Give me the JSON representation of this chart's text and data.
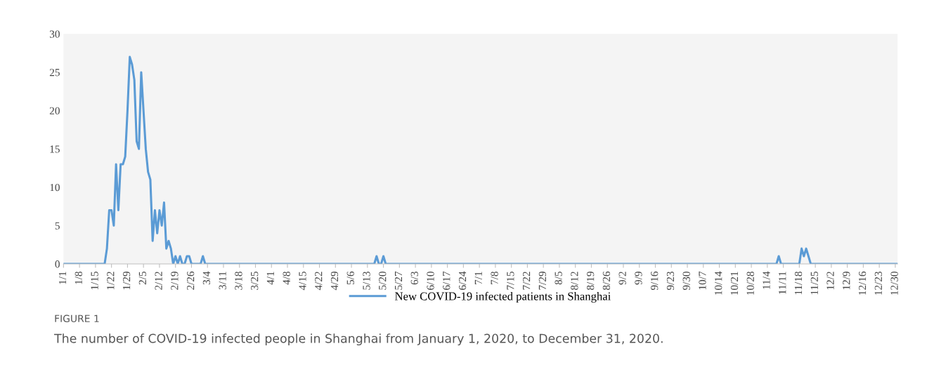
{
  "chart_data": {
    "type": "line",
    "annotations": [
      "FIGURE 1",
      "The number of COVID-19 infected people in Shanghai from January 1, 2020, to December 31, 2020."
    ],
    "series": [
      {
        "name": "New COVID-19 infected patients in Shanghai",
        "color": "#5b9bd5",
        "x": [
          "2020-01-01",
          "2020-01-19",
          "2020-01-20",
          "2020-01-21",
          "2020-01-22",
          "2020-01-23",
          "2020-01-24",
          "2020-01-25",
          "2020-01-26",
          "2020-01-27",
          "2020-01-28",
          "2020-01-29",
          "2020-01-30",
          "2020-01-31",
          "2020-02-01",
          "2020-02-02",
          "2020-02-03",
          "2020-02-04",
          "2020-02-05",
          "2020-02-06",
          "2020-02-07",
          "2020-02-08",
          "2020-02-09",
          "2020-02-10",
          "2020-02-11",
          "2020-02-12",
          "2020-02-13",
          "2020-02-14",
          "2020-02-15",
          "2020-02-16",
          "2020-02-17",
          "2020-02-18",
          "2020-02-19",
          "2020-02-20",
          "2020-02-21",
          "2020-02-22",
          "2020-02-23",
          "2020-02-24",
          "2020-02-25",
          "2020-02-26",
          "2020-03-01",
          "2020-03-02",
          "2020-03-03",
          "2020-05-16",
          "2020-05-17",
          "2020-05-18",
          "2020-05-19",
          "2020-05-20",
          "2020-05-21",
          "2020-11-08",
          "2020-11-09",
          "2020-11-10",
          "2020-11-18",
          "2020-11-19",
          "2020-11-20",
          "2020-11-21",
          "2020-11-22",
          "2020-11-23",
          "2020-12-31"
        ],
        "values": [
          0,
          0,
          2,
          7,
          7,
          5,
          13,
          7,
          13,
          13,
          14,
          20,
          27,
          26,
          24,
          16,
          15,
          25,
          20,
          15,
          12,
          11,
          3,
          7,
          4,
          7,
          5,
          8,
          2,
          3,
          2,
          0,
          1,
          0,
          1,
          0,
          0,
          1,
          1,
          0,
          0,
          1,
          0,
          0,
          1,
          0,
          0,
          1,
          0,
          0,
          1,
          0,
          0,
          2,
          1,
          2,
          1,
          0,
          0
        ]
      }
    ],
    "xlim": [
      "2020-01-01",
      "2020-12-31"
    ],
    "xticks": [
      {
        "value": "2020-01-01",
        "label": "1/1"
      },
      {
        "value": "2020-01-08",
        "label": "1/8"
      },
      {
        "value": "2020-01-15",
        "label": "1/15"
      },
      {
        "value": "2020-01-22",
        "label": "1/22"
      },
      {
        "value": "2020-01-29",
        "label": "1/29"
      },
      {
        "value": "2020-02-05",
        "label": "2/5"
      },
      {
        "value": "2020-02-12",
        "label": "2/12"
      },
      {
        "value": "2020-02-19",
        "label": "2/19"
      },
      {
        "value": "2020-02-26",
        "label": "2/26"
      },
      {
        "value": "2020-03-04",
        "label": "3/4"
      },
      {
        "value": "2020-03-11",
        "label": "3/11"
      },
      {
        "value": "2020-03-18",
        "label": "3/18"
      },
      {
        "value": "2020-03-25",
        "label": "3/25"
      },
      {
        "value": "2020-04-01",
        "label": "4/1"
      },
      {
        "value": "2020-04-08",
        "label": "4/8"
      },
      {
        "value": "2020-04-15",
        "label": "4/15"
      },
      {
        "value": "2020-04-22",
        "label": "4/22"
      },
      {
        "value": "2020-04-29",
        "label": "4/29"
      },
      {
        "value": "2020-05-06",
        "label": "5/6"
      },
      {
        "value": "2020-05-13",
        "label": "5/13"
      },
      {
        "value": "2020-05-20",
        "label": "5/20"
      },
      {
        "value": "2020-05-27",
        "label": "5/27"
      },
      {
        "value": "2020-06-03",
        "label": "6/3"
      },
      {
        "value": "2020-06-10",
        "label": "6/10"
      },
      {
        "value": "2020-06-17",
        "label": "6/17"
      },
      {
        "value": "2020-06-24",
        "label": "6/24"
      },
      {
        "value": "2020-07-01",
        "label": "7/1"
      },
      {
        "value": "2020-07-08",
        "label": "7/8"
      },
      {
        "value": "2020-07-15",
        "label": "7/15"
      },
      {
        "value": "2020-07-22",
        "label": "7/22"
      },
      {
        "value": "2020-07-29",
        "label": "7/29"
      },
      {
        "value": "2020-08-05",
        "label": "8/5"
      },
      {
        "value": "2020-08-12",
        "label": "8/12"
      },
      {
        "value": "2020-08-19",
        "label": "8/19"
      },
      {
        "value": "2020-08-26",
        "label": "8/26"
      },
      {
        "value": "2020-09-02",
        "label": "9/2"
      },
      {
        "value": "2020-09-09",
        "label": "9/9"
      },
      {
        "value": "2020-09-16",
        "label": "9/16"
      },
      {
        "value": "2020-09-23",
        "label": "9/23"
      },
      {
        "value": "2020-09-30",
        "label": "9/30"
      },
      {
        "value": "2020-10-07",
        "label": "10/7"
      },
      {
        "value": "2020-10-14",
        "label": "10/14"
      },
      {
        "value": "2020-10-21",
        "label": "10/21"
      },
      {
        "value": "2020-10-28",
        "label": "10/28"
      },
      {
        "value": "2020-11-04",
        "label": "11/4"
      },
      {
        "value": "2020-11-11",
        "label": "11/11"
      },
      {
        "value": "2020-11-18",
        "label": "11/18"
      },
      {
        "value": "2020-11-25",
        "label": "11/25"
      },
      {
        "value": "2020-12-02",
        "label": "12/2"
      },
      {
        "value": "2020-12-09",
        "label": "12/9"
      },
      {
        "value": "2020-12-16",
        "label": "12/16"
      },
      {
        "value": "2020-12-23",
        "label": "12/23"
      },
      {
        "value": "2020-12-30",
        "label": "12/30"
      }
    ],
    "ylim": [
      0,
      30
    ],
    "yticks": [
      0,
      5,
      10,
      15,
      20,
      25,
      30
    ],
    "grid": false,
    "legend": "bottom",
    "marker": "none",
    "line_style": "solid"
  }
}
